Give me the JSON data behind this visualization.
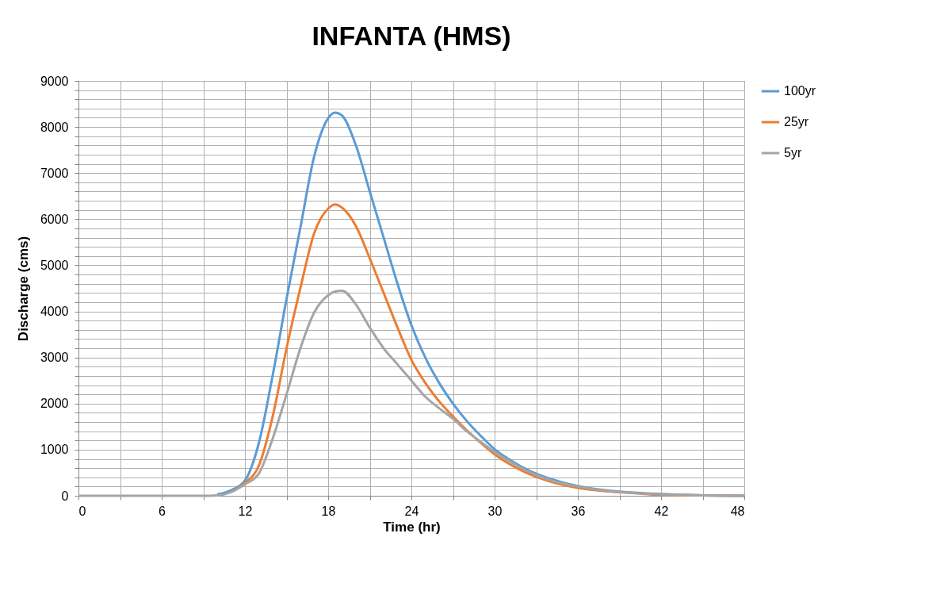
{
  "chart_data": {
    "type": "line",
    "title": "INFANTA (HMS)",
    "xlabel": "Time (hr)",
    "ylabel": "Discharge  (cms)",
    "x": [
      0,
      3,
      6,
      9,
      10,
      11,
      12,
      13,
      14,
      15,
      16,
      17,
      18,
      18.5,
      19,
      20,
      21,
      22,
      23,
      24,
      25,
      26,
      27,
      28,
      29,
      30,
      31,
      32,
      33,
      34,
      35,
      36,
      38,
      40,
      42,
      45,
      48
    ],
    "series": [
      {
        "name": "100yr",
        "color": "#5b9bd5",
        "values": [
          null,
          null,
          null,
          null,
          30,
          120,
          330,
          1140,
          2610,
          4270,
          5820,
          7370,
          8190,
          8310,
          8250,
          7600,
          6600,
          5600,
          4600,
          3700,
          3000,
          2450,
          2000,
          1620,
          1300,
          1010,
          800,
          620,
          480,
          370,
          280,
          210,
          120,
          70,
          40,
          10,
          0
        ]
      },
      {
        "name": "25yr",
        "color": "#ed7d31",
        "values": [
          null,
          null,
          null,
          null,
          null,
          80,
          280,
          650,
          1720,
          3200,
          4510,
          5700,
          6230,
          6320,
          6250,
          5850,
          5150,
          4400,
          3650,
          2950,
          2450,
          2050,
          1720,
          1420,
          1150,
          900,
          700,
          540,
          410,
          310,
          230,
          170,
          100,
          60,
          20,
          10,
          0
        ]
      },
      {
        "name": "5yr",
        "color": "#a5a5a5",
        "values": [
          0,
          0,
          0,
          0,
          10,
          80,
          250,
          480,
          1240,
          2200,
          3200,
          3980,
          4350,
          4430,
          4450,
          4150,
          3650,
          3200,
          2850,
          2500,
          2150,
          1900,
          1670,
          1400,
          1170,
          950,
          760,
          590,
          450,
          340,
          260,
          200,
          110,
          60,
          30,
          10,
          0
        ]
      }
    ],
    "xlim": [
      0,
      48
    ],
    "xticks": [
      0,
      {
        "value": 3,
        "label": null
      },
      6,
      {
        "value": 9,
        "label": null
      },
      12,
      {
        "value": 15,
        "label": null
      },
      18,
      {
        "value": 21,
        "label": null
      },
      24,
      {
        "value": 27,
        "label": null
      },
      30,
      {
        "value": 33,
        "label": null
      },
      36,
      {
        "value": 39,
        "label": null
      },
      42,
      {
        "value": 45,
        "label": null
      },
      48
    ],
    "ylim": [
      0,
      9000
    ],
    "yticks": [
      0,
      {
        "value": 200,
        "label": null
      },
      {
        "value": 400,
        "label": null
      },
      {
        "value": 600,
        "label": null
      },
      {
        "value": 800,
        "label": null
      },
      1000,
      {
        "value": 1200,
        "label": null
      },
      {
        "value": 1400,
        "label": null
      },
      {
        "value": 1600,
        "label": null
      },
      {
        "value": 1800,
        "label": null
      },
      2000,
      {
        "value": 2200,
        "label": null
      },
      {
        "value": 2400,
        "label": null
      },
      {
        "value": 2600,
        "label": null
      },
      {
        "value": 2800,
        "label": null
      },
      3000,
      {
        "value": 3200,
        "label": null
      },
      {
        "value": 3400,
        "label": null
      },
      {
        "value": 3600,
        "label": null
      },
      {
        "value": 3800,
        "label": null
      },
      4000,
      {
        "value": 4200,
        "label": null
      },
      {
        "value": 4400,
        "label": null
      },
      {
        "value": 4600,
        "label": null
      },
      {
        "value": 4800,
        "label": null
      },
      5000,
      {
        "value": 5200,
        "label": null
      },
      {
        "value": 5400,
        "label": null
      },
      {
        "value": 5600,
        "label": null
      },
      {
        "value": 5800,
        "label": null
      },
      6000,
      {
        "value": 6200,
        "label": null
      },
      {
        "value": 6400,
        "label": null
      },
      {
        "value": 6600,
        "label": null
      },
      {
        "value": 6800,
        "label": null
      },
      7000,
      {
        "value": 7200,
        "label": null
      },
      {
        "value": 7400,
        "label": null
      },
      {
        "value": 7600,
        "label": null
      },
      {
        "value": 7800,
        "label": null
      },
      8000,
      {
        "value": 8200,
        "label": null
      },
      {
        "value": 8400,
        "label": null
      },
      {
        "value": 8600,
        "label": null
      },
      {
        "value": 8800,
        "label": null
      },
      9000
    ],
    "grid": true,
    "legend": "right",
    "marker": "none",
    "line_style": "solid"
  }
}
